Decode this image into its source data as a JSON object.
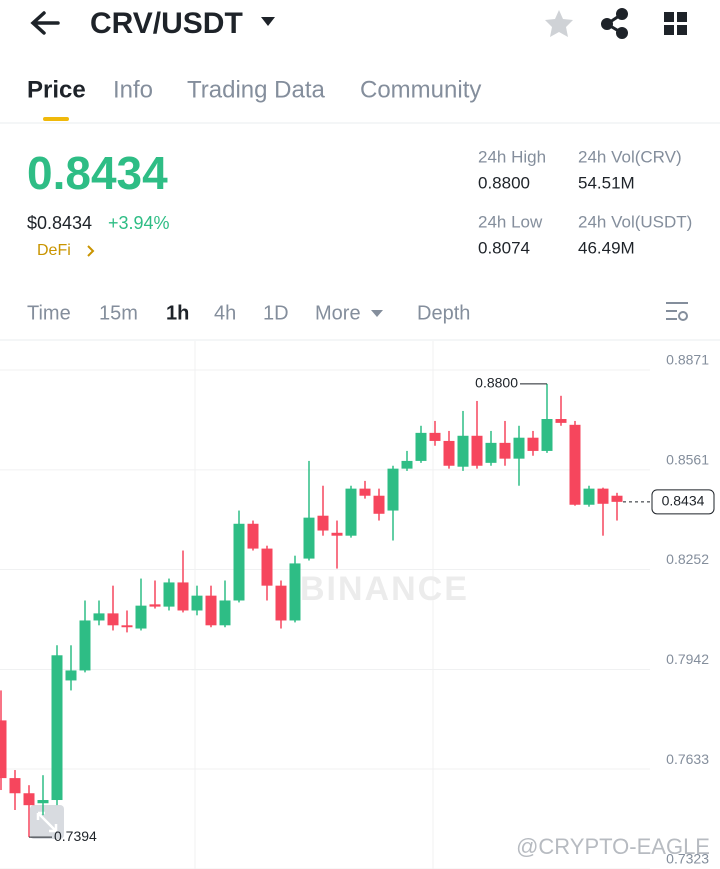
{
  "header": {
    "pair": "CRV/USDT"
  },
  "tabs": [
    "Price",
    "Info",
    "Trading Data",
    "Community"
  ],
  "price": {
    "last": "0.8434",
    "usd": "$0.8434",
    "change": "+3.94%",
    "tag": "DeFi"
  },
  "stats": [
    {
      "label": "24h High",
      "value": "0.8800"
    },
    {
      "label": "24h Vol(CRV)",
      "value": "54.51M"
    },
    {
      "label": "24h Low",
      "value": "0.8074"
    },
    {
      "label": "24h Vol(USDT)",
      "value": "46.49M"
    }
  ],
  "intervals": [
    "Time",
    "15m",
    "1h",
    "4h",
    "1D",
    "More",
    "Depth"
  ],
  "chart_data": {
    "type": "candlestick",
    "ylim": [
      0.7295,
      0.8933
    ],
    "yticks": [
      0.8871,
      0.8561,
      0.8252,
      0.7942,
      0.7633,
      0.7323
    ],
    "grid": true,
    "up_color": "#2ebd85",
    "down_color": "#f6465d",
    "open": [
      0.7756,
      0.7577,
      0.753,
      0.7499,
      0.7509,
      0.788,
      0.7911,
      0.8066,
      0.8088,
      0.8051,
      0.8041,
      0.8116,
      0.8109,
      0.8184,
      0.8097,
      0.8143,
      0.8051,
      0.8128,
      0.8366,
      0.8289,
      0.8174,
      0.8066,
      0.8258,
      0.8391,
      0.8338,
      0.8329,
      0.8475,
      0.8453,
      0.8407,
      0.8537,
      0.8561,
      0.8648,
      0.8623,
      0.8543,
      0.8639,
      0.8555,
      0.8617,
      0.8568,
      0.8633,
      0.8592,
      0.8691,
      0.8673,
      0.8425,
      0.8475,
      0.8453
    ],
    "high": [
      0.7849,
      0.7602,
      0.7555,
      0.7586,
      0.7989,
      0.7989,
      0.8128,
      0.8128,
      0.8174,
      0.8097,
      0.8196,
      0.819,
      0.8196,
      0.8283,
      0.8174,
      0.8174,
      0.819,
      0.8407,
      0.8376,
      0.8298,
      0.819,
      0.8267,
      0.8561,
      0.8484,
      0.8376,
      0.8484,
      0.8499,
      0.8475,
      0.8546,
      0.8592,
      0.867,
      0.8685,
      0.8654,
      0.8716,
      0.8747,
      0.8654,
      0.8685,
      0.867,
      0.8654,
      0.88,
      0.8763,
      0.8685,
      0.8484,
      0.8478,
      0.8462
    ],
    "low": [
      0.754,
      0.7478,
      0.7394,
      0.7462,
      0.7493,
      0.7849,
      0.7905,
      0.8051,
      0.8035,
      0.8029,
      0.8035,
      0.8103,
      0.8097,
      0.8091,
      0.8082,
      0.8045,
      0.8045,
      0.8122,
      0.8283,
      0.8128,
      0.8041,
      0.806,
      0.8252,
      0.8329,
      0.8227,
      0.8323,
      0.8444,
      0.8376,
      0.8314,
      0.853,
      0.8555,
      0.8608,
      0.8537,
      0.853,
      0.8537,
      0.8546,
      0.8546,
      0.8484,
      0.8577,
      0.8586,
      0.867,
      0.8422,
      0.8419,
      0.8329,
      0.8376
    ],
    "close": [
      0.7577,
      0.753,
      0.7493,
      0.7509,
      0.7958,
      0.7911,
      0.8066,
      0.8088,
      0.8051,
      0.8045,
      0.8112,
      0.8109,
      0.8184,
      0.8097,
      0.8143,
      0.8051,
      0.8128,
      0.8366,
      0.8289,
      0.8174,
      0.8066,
      0.8243,
      0.8385,
      0.8345,
      0.8329,
      0.8475,
      0.8453,
      0.8397,
      0.8537,
      0.8561,
      0.8648,
      0.8623,
      0.8546,
      0.8639,
      0.8546,
      0.8617,
      0.8568,
      0.8633,
      0.8592,
      0.8691,
      0.8679,
      0.8425,
      0.8475,
      0.8428,
      0.8434
    ],
    "max_marker": {
      "value": 0.88,
      "label": "0.8800"
    },
    "min_marker": {
      "value": 0.7394,
      "label": "0.7394"
    },
    "last_marker": {
      "value": 0.8434,
      "label": "0.8434"
    },
    "watermark": "BINANCE"
  },
  "credit": "@CRYPTO-EAGLE"
}
